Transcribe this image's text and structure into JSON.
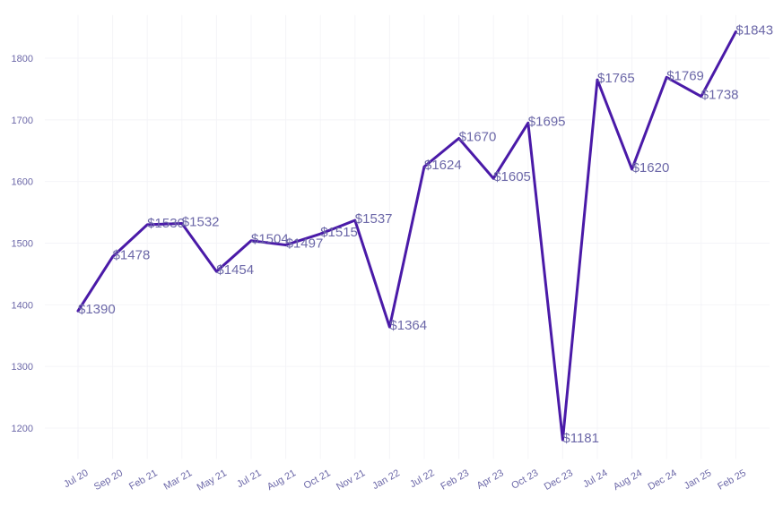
{
  "chart_data": {
    "type": "line",
    "title": "",
    "xlabel": "",
    "ylabel": "",
    "categories": [
      "Jul 20",
      "Sep 20",
      "Feb 21",
      "Mar 21",
      "May 21",
      "Jul 21",
      "Aug 21",
      "Oct 21",
      "Nov 21",
      "Jan 22",
      "Jul 22",
      "Feb 23",
      "Apr 23",
      "Oct 23",
      "Dec 23",
      "Jul 24",
      "Aug 24",
      "Dec 24",
      "Jan 25",
      "Feb 25"
    ],
    "values": [
      1390,
      1478,
      1530,
      1532,
      1454,
      1504,
      1497,
      1515,
      1537,
      1364,
      1624,
      1670,
      1605,
      1695,
      1181,
      1765,
      1620,
      1769,
      1738,
      1843
    ],
    "labels": [
      "$1390",
      "$1478",
      "$1530",
      "$1532",
      "$1454",
      "$1504",
      "$1497",
      "$1515",
      "$1537",
      "$1364",
      "$1624",
      "$1670",
      "$1605",
      "$1695",
      "$1181",
      "$1765",
      "$1620",
      "$1769",
      "$1738",
      "$1843"
    ],
    "yticks": [
      1200,
      1300,
      1400,
      1500,
      1600,
      1700,
      1800
    ],
    "ylim": [
      1150,
      1870
    ],
    "grid": true,
    "legend": "none",
    "colors": {
      "line": "#4a1aa8",
      "text": "#6c68a8",
      "grid": "#f4f4f8"
    }
  }
}
